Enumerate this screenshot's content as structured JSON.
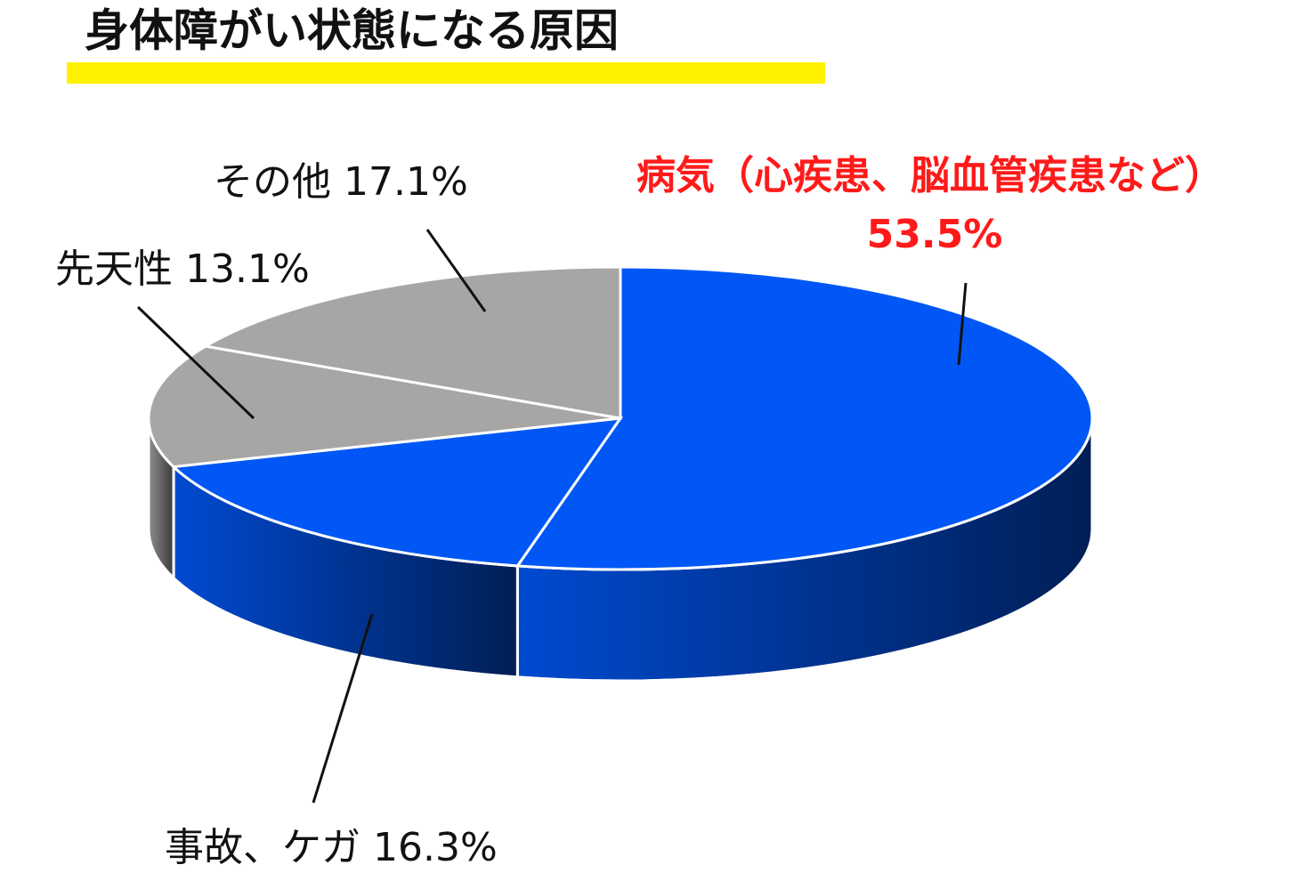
{
  "chart_data": {
    "type": "pie",
    "title": "身体障がい状態になる原因",
    "categories": [
      "病気（心疾患、脳血管疾患など）",
      "事故、ケガ",
      "先天性",
      "その他"
    ],
    "values": [
      53.5,
      16.3,
      13.1,
      17.1
    ],
    "value_labels": [
      "53.5%",
      "16.3%",
      "13.1%",
      "17.1%"
    ],
    "colors": [
      "#0057f5",
      "#0057f5",
      "#a8a5a5",
      "#a8a5a5"
    ]
  }
}
